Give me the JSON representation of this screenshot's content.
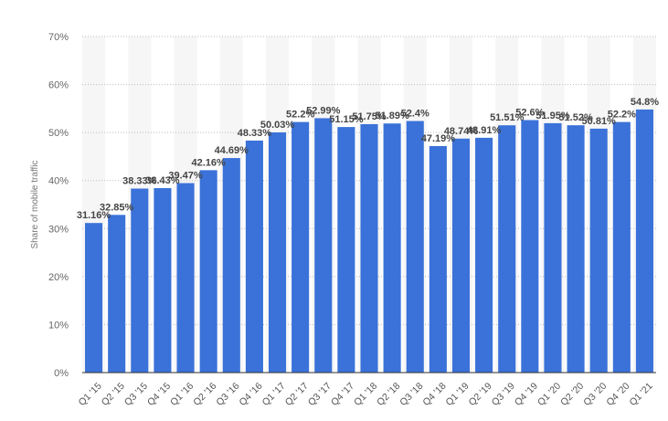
{
  "chart_data": {
    "type": "bar",
    "title": "",
    "xlabel": "",
    "ylabel": "Share of mobile traffic",
    "ylim": [
      0,
      70
    ],
    "yticks": [
      "0%",
      "10%",
      "20%",
      "30%",
      "40%",
      "50%",
      "60%",
      "70%"
    ],
    "ytick_values": [
      0,
      10,
      20,
      30,
      40,
      50,
      60,
      70
    ],
    "grid": true,
    "legend": "none",
    "bar_color": "#3b72d9",
    "band_color": "#f6f6f6",
    "categories": [
      "Q1 '15",
      "Q2 '15",
      "Q3 '15",
      "Q4 '15",
      "Q1 '16",
      "Q2 '16",
      "Q3 '16",
      "Q4 '16",
      "Q1 '17",
      "Q2 '17",
      "Q3 '17",
      "Q4 '17",
      "Q1 '18",
      "Q2 '18",
      "Q3 '18",
      "Q4 '18",
      "Q1 '19",
      "Q2 '19",
      "Q3 '19",
      "Q4 '19",
      "Q1 '20",
      "Q2 '20",
      "Q3 '20",
      "Q4 '20",
      "Q1 '21"
    ],
    "values": [
      31.16,
      32.85,
      38.33,
      38.43,
      39.47,
      42.16,
      44.69,
      48.33,
      50.03,
      52.2,
      52.99,
      51.15,
      51.75,
      51.89,
      52.4,
      47.19,
      48.74,
      48.91,
      51.51,
      52.6,
      51.95,
      51.52,
      50.81,
      52.2,
      54.8
    ],
    "labels": [
      "31.16%",
      "32.85%",
      "38.33%",
      "38.43%",
      "39.47%",
      "42.16%",
      "44.69%",
      "48.33%",
      "50.03%",
      "52.2%",
      "52.99%",
      "51.15%",
      "51.75%",
      "51.89%",
      "52.4%",
      "47.19%",
      "48.74%",
      "48.91%",
      "51.51%",
      "52.6%",
      "51.95%",
      "51.52%",
      "50.81%",
      "52.2%",
      "54.8%"
    ]
  }
}
